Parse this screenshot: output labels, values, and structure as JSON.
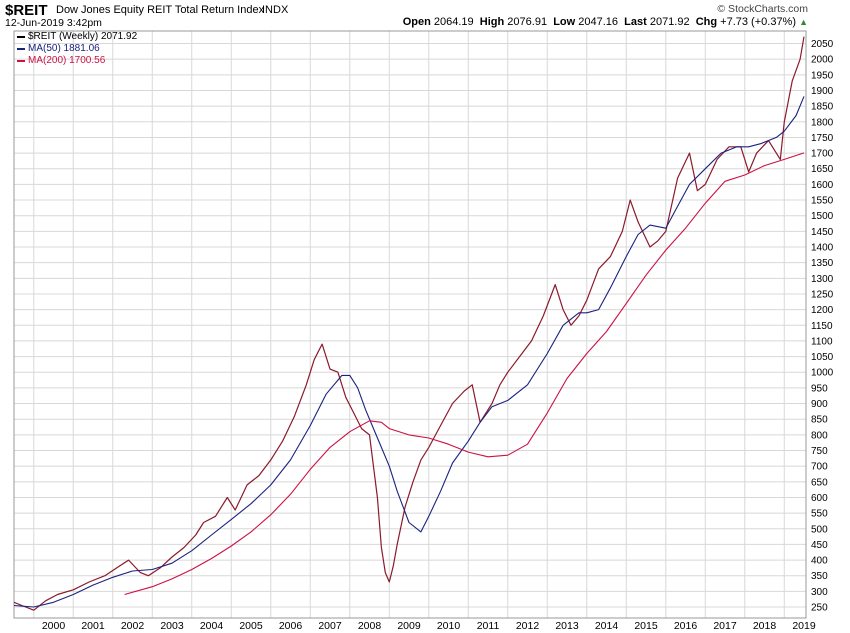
{
  "header": {
    "symbol": "$REIT",
    "name": "Dow Jones Equity REIT Total Return Index",
    "exchange": "INDX",
    "datetime": "12-Jun-2019 3:42pm",
    "credit": "© StockCharts.com",
    "open_label": "Open",
    "open": "2064.19",
    "high_label": "High",
    "high": "2076.91",
    "low_label": "Low",
    "low": "2047.16",
    "last_label": "Last",
    "last": "2071.92",
    "chg_label": "Chg",
    "chg": "+7.73 (+0.37%)"
  },
  "legend": [
    {
      "label": "$REIT (Weekly) 2071.92",
      "color": "#000000"
    },
    {
      "label": "MA(50) 1881.06",
      "color": "#1a237e"
    },
    {
      "label": "MA(200) 1700.56",
      "color": "#cc1144"
    }
  ],
  "colors": {
    "price": "#8b1a2b",
    "ma50": "#1a237e",
    "ma200": "#cc1144",
    "grid": "#d8d8d8"
  },
  "chart_data": {
    "type": "line",
    "title": "Dow Jones Equity REIT Total Return Index",
    "xlabel": "",
    "ylabel": "",
    "xlim": [
      1999.5,
      2019.55
    ],
    "ylim": [
      215,
      2090
    ],
    "x_ticks": [
      2000,
      2001,
      2002,
      2003,
      2004,
      2005,
      2006,
      2007,
      2008,
      2009,
      2010,
      2011,
      2012,
      2013,
      2014,
      2015,
      2016,
      2017,
      2018,
      2019
    ],
    "y_ticks": [
      250,
      300,
      350,
      400,
      450,
      500,
      550,
      600,
      650,
      700,
      750,
      800,
      850,
      900,
      950,
      1000,
      1050,
      1100,
      1150,
      1200,
      1250,
      1300,
      1350,
      1400,
      1450,
      1500,
      1550,
      1600,
      1650,
      1700,
      1750,
      1800,
      1850,
      1900,
      1950,
      2000,
      2050
    ],
    "series": [
      {
        "name": "$REIT (Weekly)",
        "color": "#8b1a2b",
        "x": [
          1999.5,
          1999.7,
          2000.0,
          2000.3,
          2000.6,
          2001.0,
          2001.4,
          2001.8,
          2002.1,
          2002.4,
          2002.7,
          2002.9,
          2003.2,
          2003.5,
          2003.8,
          2004.1,
          2004.3,
          2004.6,
          2004.9,
          2005.1,
          2005.4,
          2005.7,
          2006.0,
          2006.3,
          2006.6,
          2006.9,
          2007.1,
          2007.3,
          2007.5,
          2007.7,
          2007.9,
          2008.1,
          2008.3,
          2008.5,
          2008.7,
          2008.8,
          2008.9,
          2009.0,
          2009.1,
          2009.2,
          2009.4,
          2009.6,
          2009.8,
          2010.0,
          2010.3,
          2010.6,
          2010.9,
          2011.1,
          2011.3,
          2011.6,
          2011.8,
          2012.0,
          2012.3,
          2012.6,
          2012.9,
          2013.2,
          2013.4,
          2013.6,
          2013.8,
          2014.0,
          2014.3,
          2014.6,
          2014.9,
          2015.1,
          2015.3,
          2015.6,
          2015.8,
          2016.0,
          2016.3,
          2016.6,
          2016.8,
          2017.0,
          2017.3,
          2017.6,
          2017.9,
          2018.1,
          2018.3,
          2018.6,
          2018.9,
          2019.0,
          2019.2,
          2019.4,
          2019.5
        ],
        "y": [
          265,
          255,
          240,
          270,
          290,
          305,
          330,
          350,
          375,
          400,
          360,
          350,
          375,
          410,
          440,
          480,
          520,
          540,
          600,
          560,
          640,
          670,
          720,
          780,
          860,
          960,
          1040,
          1090,
          1010,
          1000,
          920,
          870,
          820,
          800,
          600,
          440,
          360,
          330,
          380,
          450,
          570,
          650,
          720,
          760,
          830,
          900,
          940,
          960,
          840,
          900,
          960,
          1000,
          1050,
          1100,
          1180,
          1280,
          1200,
          1150,
          1180,
          1230,
          1330,
          1370,
          1450,
          1550,
          1480,
          1400,
          1420,
          1450,
          1620,
          1700,
          1580,
          1600,
          1680,
          1720,
          1720,
          1640,
          1700,
          1740,
          1680,
          1800,
          1930,
          2000,
          2071.92
        ]
      },
      {
        "name": "MA(50)",
        "color": "#1a237e",
        "x": [
          1999.5,
          2000.0,
          2000.5,
          2001.0,
          2001.5,
          2002.0,
          2002.5,
          2003.0,
          2003.5,
          2004.0,
          2004.5,
          2005.0,
          2005.5,
          2006.0,
          2006.5,
          2007.0,
          2007.4,
          2007.8,
          2008.0,
          2008.2,
          2008.4,
          2008.6,
          2008.8,
          2009.0,
          2009.2,
          2009.5,
          2009.8,
          2010.0,
          2010.3,
          2010.6,
          2011.0,
          2011.3,
          2011.6,
          2012.0,
          2012.5,
          2013.0,
          2013.4,
          2013.8,
          2014.0,
          2014.3,
          2014.6,
          2015.0,
          2015.3,
          2015.6,
          2016.0,
          2016.3,
          2016.6,
          2017.0,
          2017.4,
          2017.8,
          2018.1,
          2018.4,
          2018.8,
          2019.0,
          2019.3,
          2019.5
        ],
        "y": [
          255,
          250,
          265,
          290,
          320,
          345,
          365,
          370,
          390,
          430,
          480,
          530,
          580,
          640,
          720,
          830,
          930,
          990,
          990,
          950,
          880,
          820,
          760,
          700,
          620,
          520,
          490,
          540,
          620,
          710,
          780,
          840,
          890,
          910,
          960,
          1060,
          1150,
          1190,
          1190,
          1200,
          1270,
          1370,
          1440,
          1470,
          1460,
          1530,
          1600,
          1650,
          1700,
          1720,
          1720,
          1730,
          1750,
          1770,
          1820,
          1881.06
        ]
      },
      {
        "name": "MA(200)",
        "color": "#cc1144",
        "x": [
          2002.3,
          2003.0,
          2003.5,
          2004.0,
          2004.5,
          2005.0,
          2005.5,
          2006.0,
          2006.5,
          2007.0,
          2007.5,
          2008.0,
          2008.5,
          2008.8,
          2009.0,
          2009.5,
          2010.0,
          2010.5,
          2011.0,
          2011.5,
          2012.0,
          2012.5,
          2013.0,
          2013.5,
          2014.0,
          2014.5,
          2015.0,
          2015.5,
          2016.0,
          2016.5,
          2017.0,
          2017.5,
          2018.0,
          2018.5,
          2019.0,
          2019.5
        ],
        "y": [
          290,
          315,
          340,
          370,
          405,
          445,
          490,
          545,
          610,
          690,
          760,
          810,
          845,
          840,
          820,
          800,
          790,
          770,
          745,
          730,
          735,
          770,
          870,
          980,
          1060,
          1130,
          1220,
          1310,
          1390,
          1460,
          1540,
          1610,
          1630,
          1660,
          1680,
          1700.56
        ]
      }
    ]
  }
}
